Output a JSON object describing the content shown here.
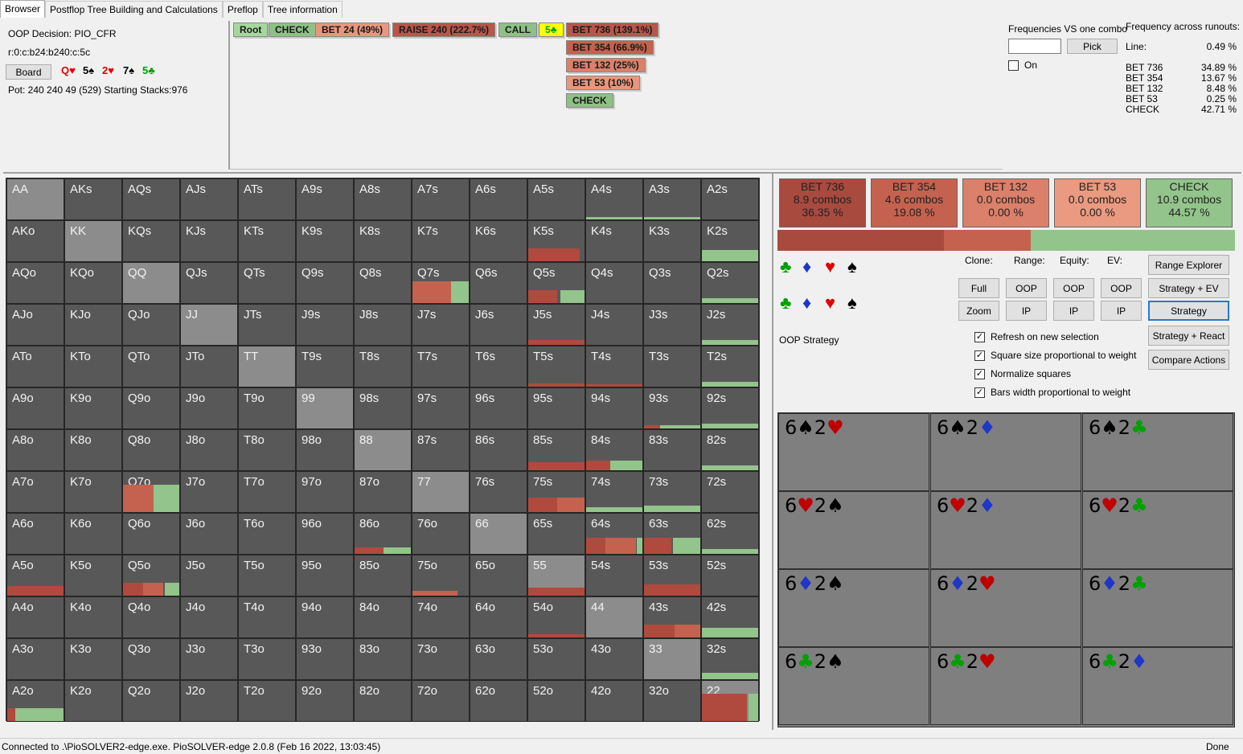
{
  "tabs": [
    "Browser",
    "Postflop Tree Building and Calculations",
    "Preflop",
    "Tree information"
  ],
  "info": {
    "decision": "OOP Decision:  PIO_CFR",
    "line": "r:0:c:b24:b240:c:5c",
    "board_button": "Board",
    "pot": "Pot: 240 240 49 (529) Starting Stacks:976"
  },
  "board_cards": [
    {
      "t": "Q♥",
      "c": "#e00000"
    },
    {
      "t": "5♠",
      "c": "#000000"
    },
    {
      "t": "2♥",
      "c": "#e00000"
    },
    {
      "t": "7♠",
      "c": "#000000"
    },
    {
      "t": "5♣",
      "c": "#00a000"
    }
  ],
  "tree": {
    "row": [
      "Root",
      "CHECK",
      "BET 24 (49%)",
      "RAISE 240 (222.7%)",
      "CALL",
      "5♣"
    ],
    "children": [
      "BET 736 (139.1%)",
      "BET 354 (66.9%)",
      "BET 132 (25%)",
      "BET 53 (10%)",
      "CHECK"
    ]
  },
  "freq_vs": {
    "title": "Frequencies VS one combo",
    "input": "",
    "pick": "Pick",
    "on": "On"
  },
  "freq_runouts": {
    "title": "Frequency across runouts:",
    "line_label": "Line:",
    "line_value": "0.49 %",
    "rows": [
      [
        "BET 736",
        "34.89 %"
      ],
      [
        "BET 354",
        "13.67 %"
      ],
      [
        "BET 132",
        "8.48 %"
      ],
      [
        "BET 53",
        "0.25 %"
      ],
      [
        "CHECK",
        "42.71 %"
      ]
    ]
  },
  "hands": [
    [
      "AA",
      "AKs",
      "AQs",
      "AJs",
      "ATs",
      "A9s",
      "A8s",
      "A7s",
      "A6s",
      "A5s",
      "A4s",
      "A3s",
      "A2s"
    ],
    [
      "AKo",
      "KK",
      "KQs",
      "KJs",
      "KTs",
      "K9s",
      "K8s",
      "K7s",
      "K6s",
      "K5s",
      "K4s",
      "K3s",
      "K2s"
    ],
    [
      "AQo",
      "KQo",
      "QQ",
      "QJs",
      "QTs",
      "Q9s",
      "Q8s",
      "Q7s",
      "Q6s",
      "Q5s",
      "Q4s",
      "Q3s",
      "Q2s"
    ],
    [
      "AJo",
      "KJo",
      "QJo",
      "JJ",
      "JTs",
      "J9s",
      "J8s",
      "J7s",
      "J6s",
      "J5s",
      "J4s",
      "J3s",
      "J2s"
    ],
    [
      "ATo",
      "KTo",
      "QTo",
      "JTo",
      "TT",
      "T9s",
      "T8s",
      "T7s",
      "T6s",
      "T5s",
      "T4s",
      "T3s",
      "T2s"
    ],
    [
      "A9o",
      "K9o",
      "Q9o",
      "J9o",
      "T9o",
      "99",
      "98s",
      "97s",
      "96s",
      "95s",
      "94s",
      "93s",
      "92s"
    ],
    [
      "A8o",
      "K8o",
      "Q8o",
      "J8o",
      "T8o",
      "98o",
      "88",
      "87s",
      "86s",
      "85s",
      "84s",
      "83s",
      "82s"
    ],
    [
      "A7o",
      "K7o",
      "Q7o",
      "J7o",
      "T7o",
      "97o",
      "87o",
      "77",
      "76s",
      "75s",
      "74s",
      "73s",
      "72s"
    ],
    [
      "A6o",
      "K6o",
      "Q6o",
      "J6o",
      "T6o",
      "96o",
      "86o",
      "76o",
      "66",
      "65s",
      "64s",
      "63s",
      "62s"
    ],
    [
      "A5o",
      "K5o",
      "Q5o",
      "J5o",
      "T5o",
      "95o",
      "85o",
      "75o",
      "65o",
      "55",
      "54s",
      "53s",
      "52s"
    ],
    [
      "A4o",
      "K4o",
      "Q4o",
      "J4o",
      "T4o",
      "94o",
      "84o",
      "74o",
      "64o",
      "54o",
      "44",
      "43s",
      "42s"
    ],
    [
      "A3o",
      "K3o",
      "Q3o",
      "J3o",
      "T3o",
      "93o",
      "83o",
      "73o",
      "63o",
      "53o",
      "43o",
      "33",
      "32s"
    ],
    [
      "A2o",
      "K2o",
      "Q2o",
      "J2o",
      "T2o",
      "92o",
      "82o",
      "72o",
      "62o",
      "52o",
      "42o",
      "32o",
      "22"
    ]
  ],
  "summary": [
    {
      "name": "BET 736",
      "combos": "8.9 combos",
      "pct": "36.35 %",
      "color": "#a84a3e"
    },
    {
      "name": "BET 354",
      "combos": "4.6 combos",
      "pct": "19.08 %",
      "color": "#c4624f"
    },
    {
      "name": "BET 132",
      "combos": "0.0 combos",
      "pct": "0.00 %",
      "color": "#db806a"
    },
    {
      "name": "BET 53",
      "combos": "0.0 combos",
      "pct": "0.00 %",
      "color": "#e99a80"
    },
    {
      "name": "CHECK",
      "combos": "10.9 combos",
      "pct": "44.57 %",
      "color": "#93c48b"
    }
  ],
  "suits_top": [
    {
      "t": "♣",
      "c": "#00a000"
    },
    {
      "t": "♦",
      "c": "#1f36c8"
    },
    {
      "t": "♥",
      "c": "#e00000"
    },
    {
      "t": "♠",
      "c": "#000000"
    }
  ],
  "controls": {
    "clone": "Clone:",
    "range": "Range:",
    "equity": "Equity:",
    "ev": "EV:",
    "full": "Full",
    "zoom": "Zoom",
    "oop": "OOP",
    "ip": "IP",
    "strategy_label": "OOP Strategy",
    "range_explorer": "Range Explorer",
    "strategy_ev": "Strategy + EV",
    "strategy": "Strategy",
    "strategy_react": "Strategy + React",
    "compare": "Compare Actions",
    "checks": [
      "Refresh on new selection",
      "Square size proportional to weight",
      "Normalize squares",
      "Bars width proportional to weight"
    ],
    "check_mark": "✓"
  },
  "combos": [
    [
      [
        "6",
        "♠",
        "#000"
      ],
      [
        "2",
        "♥",
        "#c00000"
      ]
    ],
    [
      [
        "6",
        "♠",
        "#000"
      ],
      [
        "2",
        "♦",
        "#1f36c8"
      ]
    ],
    [
      [
        "6",
        "♠",
        "#000"
      ],
      [
        "2",
        "♣",
        "#00a000"
      ]
    ],
    [
      [
        "6",
        "♥",
        "#c00000"
      ],
      [
        "2",
        "♠",
        "#000"
      ]
    ],
    [
      [
        "6",
        "♥",
        "#c00000"
      ],
      [
        "2",
        "♦",
        "#1f36c8"
      ]
    ],
    [
      [
        "6",
        "♥",
        "#c00000"
      ],
      [
        "2",
        "♣",
        "#00a000"
      ]
    ],
    [
      [
        "6",
        "♦",
        "#1f36c8"
      ],
      [
        "2",
        "♠",
        "#000"
      ]
    ],
    [
      [
        "6",
        "♦",
        "#1f36c8"
      ],
      [
        "2",
        "♥",
        "#c00000"
      ]
    ],
    [
      [
        "6",
        "♦",
        "#1f36c8"
      ],
      [
        "2",
        "♣",
        "#00a000"
      ]
    ],
    [
      [
        "6",
        "♣",
        "#00a000"
      ],
      [
        "2",
        "♠",
        "#000"
      ]
    ],
    [
      [
        "6",
        "♣",
        "#00a000"
      ],
      [
        "2",
        "♥",
        "#c00000"
      ]
    ],
    [
      [
        "6",
        "♣",
        "#00a000"
      ],
      [
        "2",
        "♦",
        "#1f36c8"
      ]
    ]
  ],
  "status": {
    "left": "Connected to .\\PioSOLVER2-edge.exe. PioSOLVER-edge 2.0.8 (Feb 16 2022, 13:03:45)",
    "right": "Done"
  },
  "colors": {
    "bet_big": "#a84a3e",
    "bet_mid": "#c4624f",
    "check": "#93c48b",
    "tree_root": "#a6d89e",
    "tree_bet": "#e8977c",
    "tree_raise": "#b8564a",
    "tree_card": "#ffff00"
  }
}
